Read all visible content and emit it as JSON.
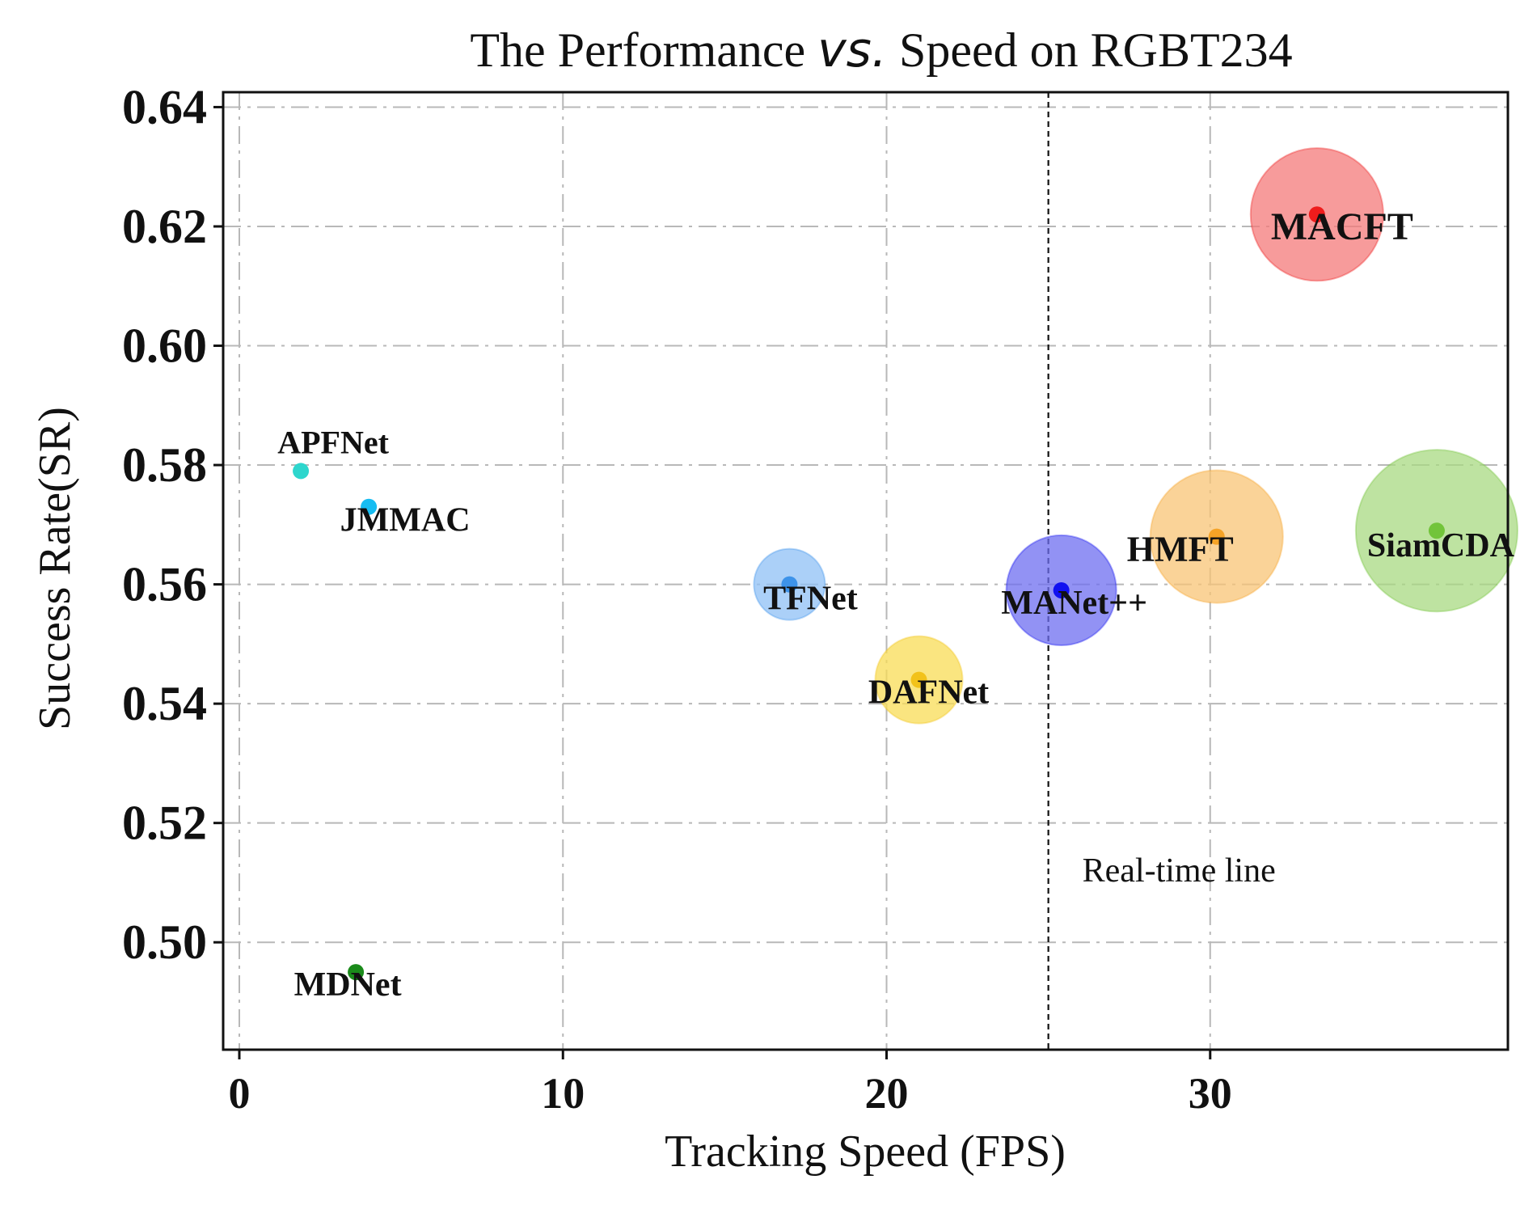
{
  "chart_data": {
    "type": "scatter",
    "title_parts": [
      "The Performance ",
      "vs.",
      " Speed on RGBT234"
    ],
    "xlabel": "Tracking Speed (FPS)",
    "ylabel": "Success Rate(SR)",
    "xlim": [
      -0.5,
      39.2
    ],
    "ylim": [
      0.482,
      0.6425
    ],
    "xticks": [
      0,
      10,
      20,
      30
    ],
    "yticks": [
      0.5,
      0.52,
      0.54,
      0.56,
      0.58,
      0.6,
      0.62,
      0.64
    ],
    "ytick_labels": [
      "0.50",
      "0.52",
      "0.54",
      "0.56",
      "0.58",
      "0.60",
      "0.62",
      "0.64"
    ],
    "grid": true,
    "realtime_line": {
      "x": 25,
      "label": "Real-time line"
    },
    "points": [
      {
        "name": "APFNet",
        "x": 1.9,
        "y": 0.579,
        "bubble": 0,
        "color": "#2ed6cd",
        "bubble_color": "#2ed6cd"
      },
      {
        "name": "JMMAC",
        "x": 4.0,
        "y": 0.573,
        "bubble": 0,
        "color": "#17bdf2",
        "bubble_color": "#17bdf2"
      },
      {
        "name": "MDNet",
        "x": 3.6,
        "y": 0.495,
        "bubble": 0,
        "color": "#1a8a1a",
        "bubble_color": "#1a8a1a"
      },
      {
        "name": "TFNet",
        "x": 17.0,
        "y": 0.56,
        "bubble": 1.1,
        "color": "#3d93ea",
        "bubble_color": "#8fc0f5"
      },
      {
        "name": "DAFNet",
        "x": 21.0,
        "y": 0.544,
        "bubble": 1.35,
        "color": "#f2c21a",
        "bubble_color": "#f8dc55"
      },
      {
        "name": "MANet++",
        "x": 25.4,
        "y": 0.559,
        "bubble": 1.7,
        "color": "#1010f0",
        "bubble_color": "#6e6ef0"
      },
      {
        "name": "HMFT",
        "x": 30.2,
        "y": 0.568,
        "bubble": 2.05,
        "color": "#f5a327",
        "bubble_color": "#f8c475"
      },
      {
        "name": "MACFT",
        "x": 33.3,
        "y": 0.622,
        "bubble": 2.05,
        "color": "#ee1c1c",
        "bubble_color": "#f47a7a"
      },
      {
        "name": "SiamCDA",
        "x": 37.0,
        "y": 0.569,
        "bubble": 2.5,
        "color": "#72c43a",
        "bubble_color": "#a8da82"
      }
    ]
  }
}
